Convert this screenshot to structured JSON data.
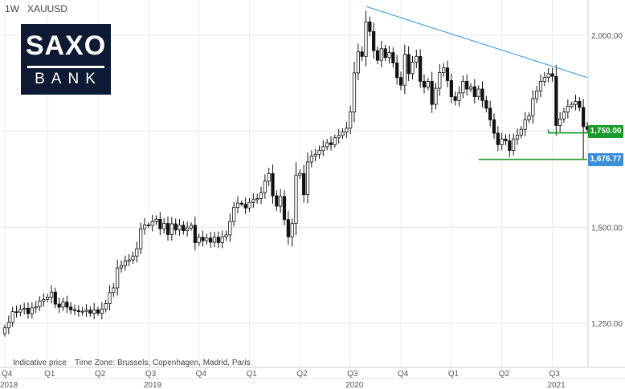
{
  "header": {
    "interval": "1W",
    "symbol": "XAUUSD"
  },
  "logo": {
    "line1": "SAXO",
    "line2": "BANK"
  },
  "footer": {
    "indicative": "Indicative price",
    "timezone": "Time Zone: Brussels, Copenhagen, Madrid, Paris"
  },
  "badges": [
    {
      "label": "1,750.00",
      "value": 1750,
      "color": "#1a9a2a"
    },
    {
      "label": "1,676.77",
      "value": 1676.77,
      "color": "#3a8fd8"
    }
  ],
  "chart_data": {
    "type": "candlestick",
    "ylim": [
      1150,
      2100
    ],
    "y_ticks": [
      {
        "value": 1250,
        "label": "1,250.00"
      },
      {
        "value": 1500,
        "label": "1,500.00"
      },
      {
        "value": 1750,
        "label": "1,750.00"
      },
      {
        "value": 2000,
        "label": "2,000.00"
      }
    ],
    "x_quarter_ticks": [
      {
        "week": 0,
        "label": "Q4"
      },
      {
        "week": 11,
        "label": "Q1"
      },
      {
        "week": 24,
        "label": "Q2"
      },
      {
        "week": 37,
        "label": "Q3"
      },
      {
        "week": 50,
        "label": "Q4"
      },
      {
        "week": 63,
        "label": "Q1"
      },
      {
        "week": 76,
        "label": "Q2"
      },
      {
        "week": 89,
        "label": "Q3"
      },
      {
        "week": 102,
        "label": "Q4"
      },
      {
        "week": 115,
        "label": "Q1"
      },
      {
        "week": 128,
        "label": "Q2"
      },
      {
        "week": 141,
        "label": "Q3"
      }
    ],
    "x_year_ticks": [
      {
        "week": 0,
        "label": "2018"
      },
      {
        "week": 37,
        "label": "2019"
      },
      {
        "week": 89,
        "label": "2020"
      },
      {
        "week": 141,
        "label": "2021"
      }
    ],
    "week_range": [
      0,
      150
    ],
    "closes": [
      1238,
      1252,
      1280,
      1279,
      1286,
      1289,
      1275,
      1290,
      1293,
      1308,
      1312,
      1318,
      1331,
      1300,
      1292,
      1305,
      1292,
      1285,
      1283,
      1280,
      1281,
      1284,
      1276,
      1285,
      1276,
      1287,
      1301,
      1330,
      1342,
      1394,
      1400,
      1412,
      1415,
      1425,
      1444,
      1496,
      1506,
      1505,
      1515,
      1521,
      1496,
      1510,
      1481,
      1509,
      1493,
      1505,
      1491,
      1498,
      1505,
      1460,
      1474,
      1465,
      1472,
      1461,
      1474,
      1460,
      1475,
      1480,
      1515,
      1552,
      1563,
      1560,
      1550,
      1565,
      1572,
      1575,
      1590,
      1620,
      1640,
      1582,
      1555,
      1580,
      1520,
      1475,
      1510,
      1635,
      1640,
      1585,
      1670,
      1685,
      1690,
      1700,
      1710,
      1720,
      1715,
      1733,
      1739,
      1748,
      1758,
      1800,
      1902,
      1957,
      1945,
      2035,
      2010,
      1960,
      1935,
      1965,
      1942,
      1955,
      1928,
      1890,
      1870,
      1950,
      1900,
      1930,
      1945,
      1880,
      1865,
      1880,
      1820,
      1862,
      1903,
      1915,
      1882,
      1840,
      1830,
      1850,
      1880,
      1860,
      1866,
      1840,
      1860,
      1830,
      1810,
      1780,
      1745,
      1715,
      1730,
      1725,
      1700,
      1730,
      1740,
      1755,
      1780,
      1790,
      1835,
      1855,
      1880,
      1890,
      1900,
      1893,
      1765,
      1782,
      1800,
      1815,
      1820,
      1828,
      1812,
      1762,
      1755
    ]
  }
}
